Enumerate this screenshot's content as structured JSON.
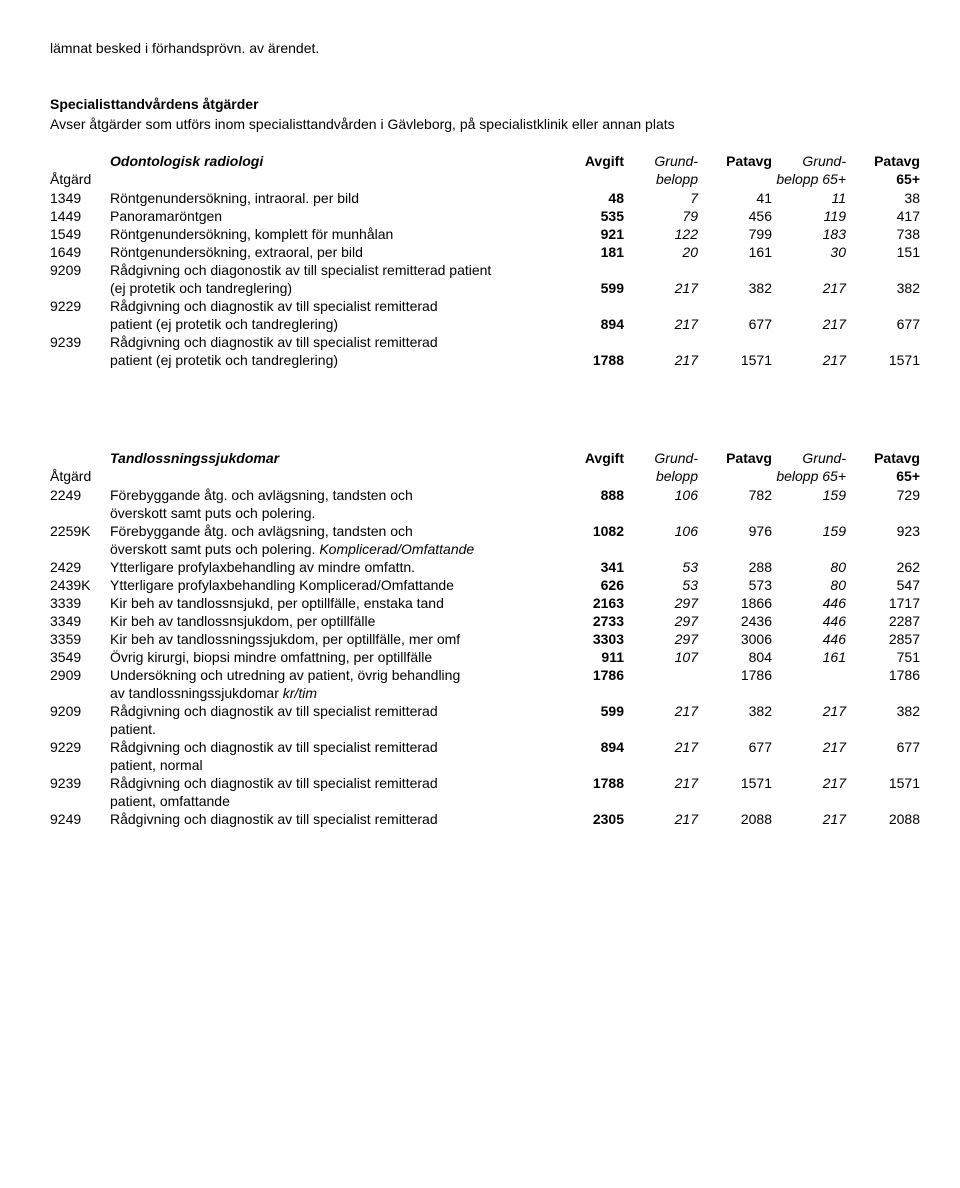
{
  "introLine": "lämnat besked i förhandsprövn. av ärendet.",
  "sections": [
    {
      "title": "Specialisttandvårdens åtgärder",
      "subtitle": "Avser åtgärder som utförs inom specialisttandvården i Gävleborg, på specialistklinik eller annan plats",
      "tableHeading": "Odontologisk radiologi",
      "headers": {
        "atgard": "Åtgärd",
        "avgift": "Avgift",
        "grund1": "Grund-",
        "belopp1": "belopp",
        "patavg1": "Patavg",
        "grund2": "Grund-",
        "belopp2": "belopp 65+",
        "patavg2": "Patavg",
        "p65": "65+"
      },
      "rows": [
        {
          "code": "1349",
          "desc": "Röntgenundersökning, intraoral. per bild",
          "v": [
            "48",
            "7",
            "41",
            "11",
            "38"
          ]
        },
        {
          "code": "1449",
          "desc": "Panoramaröntgen",
          "v": [
            "535",
            "79",
            "456",
            "119",
            "417"
          ]
        },
        {
          "code": "1549",
          "desc": "Röntgenundersökning, komplett för munhålan",
          "v": [
            "921",
            "122",
            "799",
            "183",
            "738"
          ]
        },
        {
          "code": "1649",
          "desc": "Röntgenundersökning, extraoral, per bild",
          "v": [
            "181",
            "20",
            "161",
            "30",
            "151"
          ]
        },
        {
          "code": "9209",
          "desc": "Rådgivning och diagonostik av till specialist remitterad patient",
          "desc2": "(ej protetik och tandreglering)",
          "v": [
            "599",
            "217",
            "382",
            "217",
            "382"
          ],
          "valuesOnSecond": true
        },
        {
          "code": "9229",
          "desc": "Rådgivning och diagnostik av till specialist remitterad",
          "desc2": "patient (ej protetik och tandreglering)",
          "v": [
            "894",
            "217",
            "677",
            "217",
            "677"
          ],
          "valuesOnSecond": true
        },
        {
          "code": "9239",
          "desc": "Rådgivning och diagnostik av till specialist remitterad",
          "desc2": "patient (ej protetik och tandreglering)",
          "v": [
            "1788",
            "217",
            "1571",
            "217",
            "1571"
          ],
          "valuesOnSecond": true
        }
      ]
    },
    {
      "tableHeading": "Tandlossningssjukdomar",
      "headers": {
        "atgard": "Åtgärd",
        "avgift": "Avgift",
        "grund1": "Grund-",
        "belopp1": "belopp",
        "patavg1": "Patavg",
        "grund2": "Grund-",
        "belopp2": "belopp 65+",
        "patavg2": "Patavg",
        "p65": "65+"
      },
      "rows": [
        {
          "code": "2249",
          "desc": "Förebyggande åtg. och avlägsning, tandsten och",
          "desc2": "överskott samt puts och polering.",
          "v": [
            "888",
            "106",
            "782",
            "159",
            "729"
          ]
        },
        {
          "code": "2259K",
          "desc": "Förebyggande åtg. och avlägsning, tandsten och",
          "desc2": "överskott samt puts och polering. ",
          "desc2Italic": "Komplicerad/Omfattande",
          "v": [
            "1082",
            "106",
            "976",
            "159",
            "923"
          ]
        },
        {
          "code": "2429",
          "desc": "Ytterligare profylaxbehandling av mindre omfattn.",
          "v": [
            "341",
            "53",
            "288",
            "80",
            "262"
          ]
        },
        {
          "code": "2439K",
          "desc": "Ytterligare profylaxbehandling Komplicerad/Omfattande",
          "v": [
            "626",
            "53",
            "573",
            "80",
            "547"
          ]
        },
        {
          "code": "3339",
          "desc": "Kir beh av tandlossnsjukd, per optillfälle, enstaka tand",
          "v": [
            "2163",
            "297",
            "1866",
            "446",
            "1717"
          ]
        },
        {
          "code": "3349",
          "desc": "Kir beh av tandlossnsjukdom, per optillfälle",
          "v": [
            "2733",
            "297",
            "2436",
            "446",
            "2287"
          ]
        },
        {
          "code": "3359",
          "desc": "Kir beh av tandlossningssjukdom, per optillfälle, mer omf",
          "v": [
            "3303",
            "297",
            "3006",
            "446",
            "2857"
          ]
        },
        {
          "code": "3549",
          "desc": "Övrig kirurgi, biopsi mindre omfattning, per optillfälle",
          "v": [
            "911",
            "107",
            "804",
            "161",
            "751"
          ]
        },
        {
          "code": "2909",
          "desc": "Undersökning och utredning av patient, övrig behandling",
          "desc2": "av tandlossningssjukdomar",
          "desc2ItalicTail": "kr/tim",
          "v": [
            "1786",
            "",
            "1786",
            "",
            "1786"
          ]
        },
        {
          "code": "9209",
          "desc": "Rådgivning och diagnostik av till specialist remitterad",
          "desc2": "patient.",
          "v": [
            "599",
            "217",
            "382",
            "217",
            "382"
          ]
        },
        {
          "code": "9229",
          "desc": "Rådgivning och diagnostik av till specialist remitterad",
          "desc2": "patient, normal",
          "v": [
            "894",
            "217",
            "677",
            "217",
            "677"
          ]
        },
        {
          "code": "9239",
          "desc": "Rådgivning och diagnostik av till specialist remitterad",
          "desc2": "patient, omfattande",
          "v": [
            "1788",
            "217",
            "1571",
            "217",
            "1571"
          ]
        },
        {
          "code": "9249",
          "desc": "Rådgivning och diagnostik av till specialist remitterad",
          "v": [
            "2305",
            "217",
            "2088",
            "217",
            "2088"
          ]
        }
      ]
    }
  ]
}
